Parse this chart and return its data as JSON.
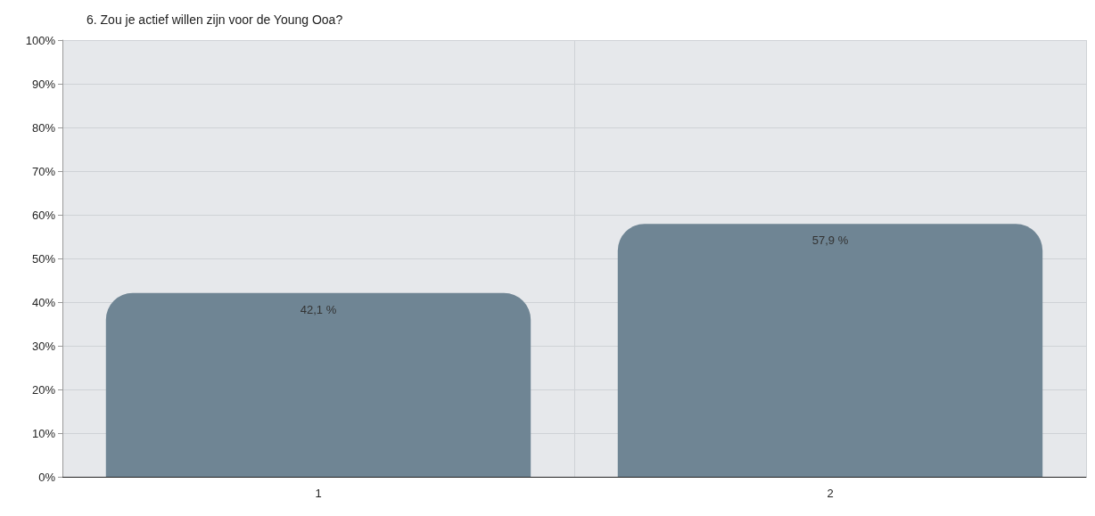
{
  "chart_data": {
    "type": "bar",
    "title": "6. Zou je actief willen zijn voor de Young Ooa?",
    "categories": [
      "1",
      "2"
    ],
    "values": [
      42.1,
      57.9
    ],
    "value_labels": [
      "42,1 %",
      "57,9 %"
    ],
    "color": "#6f8594",
    "ylim": [
      0,
      100
    ],
    "yticks": [
      {
        "value": 0,
        "label": "0%"
      },
      {
        "value": 10,
        "label": "10%"
      },
      {
        "value": 20,
        "label": "20%"
      },
      {
        "value": 30,
        "label": "30%"
      },
      {
        "value": 40,
        "label": "40%"
      },
      {
        "value": 50,
        "label": "50%"
      },
      {
        "value": 60,
        "label": "60%"
      },
      {
        "value": 70,
        "label": "70%"
      },
      {
        "value": 80,
        "label": "80%"
      },
      {
        "value": 90,
        "label": "90%"
      },
      {
        "value": 100,
        "label": "100%"
      }
    ],
    "grid": true
  }
}
